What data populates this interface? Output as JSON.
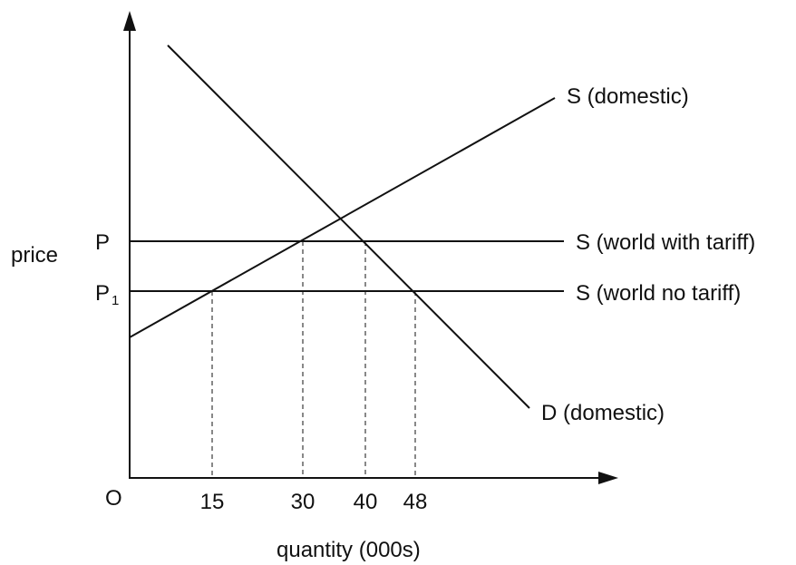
{
  "diagram": {
    "axis_labels": {
      "y": "price",
      "x": "quantity (000s)",
      "origin": "O"
    },
    "price_levels": [
      {
        "label": "P",
        "subscript": ""
      },
      {
        "label": "P",
        "subscript": "1"
      }
    ],
    "quantity_ticks": [
      "15",
      "30",
      "40",
      "48"
    ],
    "curves": {
      "domestic_supply": "S (domestic)",
      "domestic_demand": "D (domestic)",
      "world_supply_with_tariff": "S (world with tariff)",
      "world_supply_no_tariff": "S (world no tariff)"
    },
    "colors": {
      "ink": "#111111",
      "background": "#ffffff"
    }
  }
}
